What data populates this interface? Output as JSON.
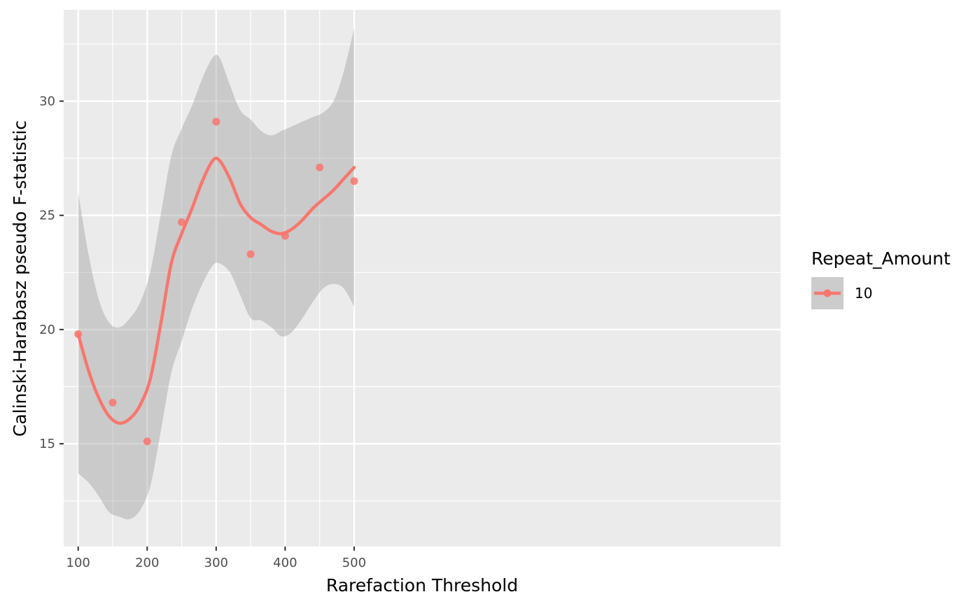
{
  "chart_data": {
    "type": "scatter",
    "xlabel": "Rarefaction Threshold",
    "ylabel": "Calinski-Harabasz pseudo F-statistic",
    "xlim": [
      79,
      1118.0
    ],
    "ylim": [
      10.5,
      34.0
    ],
    "x_ticks": [
      100,
      200,
      300,
      400,
      500
    ],
    "x_minor_ticks": [
      150,
      250,
      350,
      450
    ],
    "y_ticks": [
      15,
      20,
      25,
      30
    ],
    "y_minor_ticks": [
      12.5,
      17.5,
      22.5,
      27.5,
      32.5
    ],
    "grid": true,
    "legend": {
      "title": "Repeat_Amount",
      "placement": "right",
      "entries": [
        {
          "label": "10",
          "color": "#F8766D"
        }
      ]
    },
    "series": [
      {
        "name": "10",
        "color": "#F8766D",
        "points": {
          "x": [
            100,
            150,
            200,
            250,
            300,
            350,
            400,
            450,
            500
          ],
          "y": [
            19.8,
            16.8,
            15.1,
            24.7,
            29.1,
            23.3,
            24.1,
            27.1,
            26.5
          ]
        },
        "smooth": {
          "x": [
            100,
            115,
            130,
            145,
            160,
            175,
            190,
            205,
            220,
            235,
            250,
            265,
            280,
            295,
            305,
            320,
            335,
            350,
            365,
            380,
            395,
            410,
            425,
            440,
            455,
            470,
            485,
            500
          ],
          "y": [
            19.8,
            18.2,
            17.0,
            16.2,
            15.9,
            16.1,
            16.7,
            17.9,
            20.3,
            22.9,
            24.2,
            25.3,
            26.5,
            27.4,
            27.4,
            26.6,
            25.5,
            24.9,
            24.6,
            24.3,
            24.2,
            24.4,
            24.8,
            25.3,
            25.7,
            26.1,
            26.6,
            27.1
          ],
          "upper": [
            26.0,
            23.3,
            21.3,
            20.3,
            20.1,
            20.5,
            21.2,
            22.6,
            25.1,
            27.6,
            28.8,
            29.8,
            31.0,
            31.9,
            31.9,
            30.7,
            29.6,
            29.2,
            28.7,
            28.5,
            28.7,
            28.9,
            29.1,
            29.3,
            29.5,
            30.0,
            31.3,
            33.2
          ],
          "lower": [
            13.7,
            13.3,
            12.7,
            12.0,
            11.8,
            11.7,
            12.1,
            13.2,
            15.6,
            18.1,
            19.5,
            20.9,
            22.0,
            22.8,
            22.9,
            22.5,
            21.5,
            20.5,
            20.4,
            20.1,
            19.7,
            19.9,
            20.5,
            21.2,
            21.8,
            22.0,
            21.8,
            21.0
          ]
        }
      }
    ]
  }
}
